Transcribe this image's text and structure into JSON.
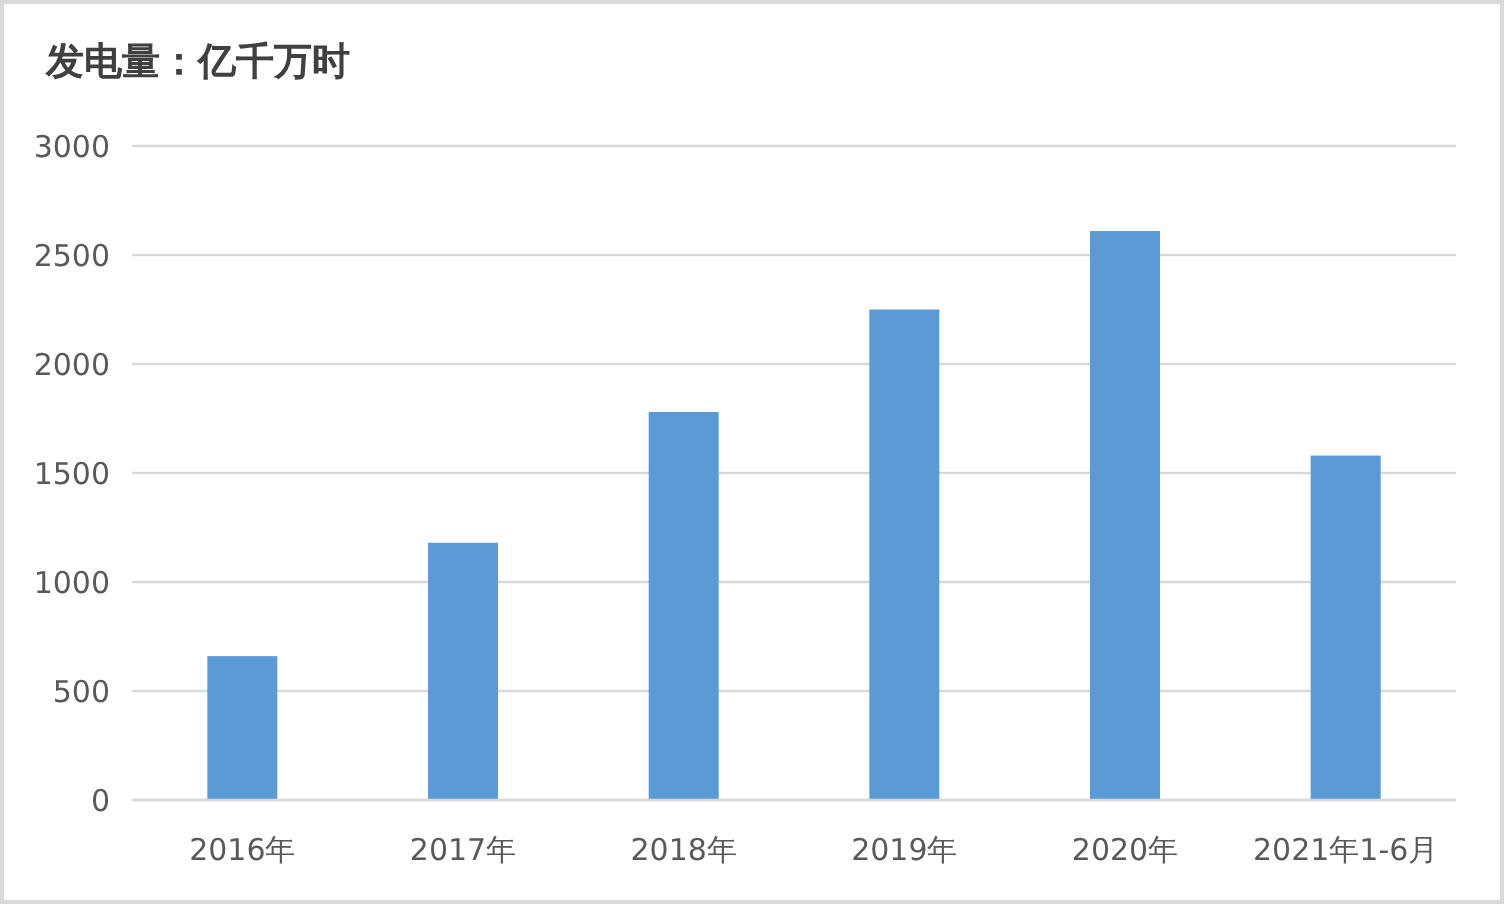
{
  "chart_data": {
    "type": "bar",
    "title": "发电量：亿千万时",
    "categories": [
      "2016年",
      "2017年",
      "2018年",
      "2019年",
      "2020年",
      "2021年1-6月"
    ],
    "values": [
      660,
      1180,
      1780,
      2250,
      2610,
      1580
    ],
    "color": "#5b9bd5",
    "ylim": [
      0,
      3000
    ],
    "yticks": [
      0,
      500,
      1000,
      1500,
      2000,
      2500,
      3000
    ],
    "grid": "y",
    "legend": false
  }
}
